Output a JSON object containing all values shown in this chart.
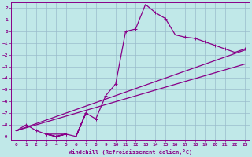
{
  "xlabel": "Windchill (Refroidissement éolien,°C)",
  "xlim": [
    -0.5,
    23.5
  ],
  "ylim": [
    -9.3,
    2.5
  ],
  "yticks": [
    2,
    1,
    0,
    -1,
    -2,
    -3,
    -4,
    -5,
    -6,
    -7,
    -8,
    -9
  ],
  "xticks": [
    0,
    1,
    2,
    3,
    4,
    5,
    6,
    7,
    8,
    9,
    10,
    11,
    12,
    13,
    14,
    15,
    16,
    17,
    18,
    19,
    20,
    21,
    22,
    23
  ],
  "line_color": "#880088",
  "bg_color": "#c0e8e8",
  "grid_color": "#9abccc",
  "line1_x": [
    0,
    1,
    2,
    3,
    4,
    5,
    3,
    4,
    5,
    6,
    7,
    6,
    7,
    8,
    9,
    10,
    11,
    12,
    13,
    14,
    15,
    16,
    17,
    18,
    19,
    20,
    21,
    22,
    23
  ],
  "line1_y": [
    -8.5,
    -8.0,
    -8.5,
    -8.8,
    -9.0,
    -8.8,
    -8.8,
    -9.0,
    -8.8,
    -9.0,
    -7.0,
    -9.0,
    -7.0,
    -7.5,
    -5.5,
    -4.5,
    0.0,
    0.2,
    2.3,
    1.6,
    1.1,
    -0.3,
    -0.5,
    -0.6,
    -0.9,
    -1.2,
    -1.5,
    -1.8,
    -1.5
  ],
  "line2_x": [
    0,
    23
  ],
  "line2_y": [
    -8.5,
    -1.6
  ],
  "line3_x": [
    0,
    23
  ],
  "line3_y": [
    -8.5,
    -2.8
  ],
  "marker": "+"
}
